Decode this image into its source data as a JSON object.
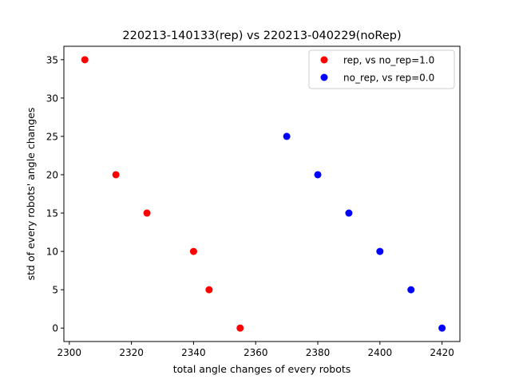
{
  "chart_data": {
    "type": "scatter",
    "title": "220213-140133(rep) vs 220213-040229(noRep)",
    "xlabel": "total angle changes of every robots",
    "ylabel": "std of every robots' angle changes",
    "xlim": [
      2298.25,
      2425.75
    ],
    "ylim": [
      -1.75,
      36.75
    ],
    "xticks": [
      2300,
      2320,
      2340,
      2360,
      2380,
      2400,
      2420
    ],
    "yticks": [
      0,
      5,
      10,
      15,
      20,
      25,
      30,
      35
    ],
    "grid": false,
    "legend_position": "top-right",
    "series": [
      {
        "name": "rep, vs no_rep=1.0",
        "color": "#ff0000",
        "x": [
          2305,
          2315,
          2325,
          2340,
          2345,
          2355
        ],
        "y": [
          35,
          20,
          15,
          10,
          5,
          0
        ]
      },
      {
        "name": "no_rep, vs rep=0.0",
        "color": "#0000ff",
        "x": [
          2370,
          2380,
          2390,
          2400,
          2410,
          2420
        ],
        "y": [
          25,
          20,
          15,
          10,
          5,
          0
        ]
      }
    ]
  }
}
